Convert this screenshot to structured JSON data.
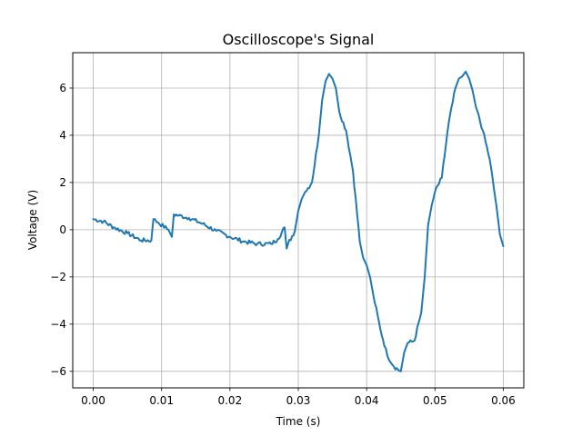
{
  "chart_data": {
    "type": "line",
    "title": "Oscilloscope's Signal",
    "xlabel": "Time (s)",
    "ylabel": "Voltage (V)",
    "xlim": [
      -0.003,
      0.063
    ],
    "ylim": [
      -6.7,
      7.5
    ],
    "x_ticks": [
      0.0,
      0.01,
      0.02,
      0.03,
      0.04,
      0.05,
      0.06
    ],
    "x_tick_labels": [
      "0.00",
      "0.01",
      "0.02",
      "0.03",
      "0.04",
      "0.05",
      "0.06"
    ],
    "y_ticks": [
      -6,
      -4,
      -2,
      0,
      2,
      4,
      6
    ],
    "y_tick_labels": [
      "−6",
      "−4",
      "−2",
      "0",
      "2",
      "4",
      "6"
    ],
    "grid": true,
    "series": [
      {
        "color": "#1f77b4",
        "x": [
          0.0,
          0.0015,
          0.003,
          0.005,
          0.007,
          0.0085,
          0.0088,
          0.0095,
          0.011,
          0.0115,
          0.0118,
          0.0125,
          0.014,
          0.016,
          0.018,
          0.02,
          0.022,
          0.024,
          0.026,
          0.027,
          0.028,
          0.0283,
          0.0285,
          0.0295,
          0.03,
          0.0305,
          0.031,
          0.032,
          0.033,
          0.0335,
          0.034,
          0.0345,
          0.035,
          0.0355,
          0.036,
          0.037,
          0.038,
          0.039,
          0.0395,
          0.04,
          0.0405,
          0.041,
          0.042,
          0.043,
          0.044,
          0.045,
          0.0455,
          0.046,
          0.047,
          0.048,
          0.0485,
          0.049,
          0.0495,
          0.05,
          0.051,
          0.052,
          0.053,
          0.0535,
          0.054,
          0.0545,
          0.055,
          0.0555,
          0.056,
          0.057,
          0.058,
          0.059,
          0.0595,
          0.06
        ],
        "y": [
          0.45,
          0.35,
          0.1,
          -0.15,
          -0.45,
          -0.45,
          0.45,
          0.3,
          0.0,
          -0.3,
          0.65,
          0.6,
          0.5,
          0.25,
          -0.05,
          -0.3,
          -0.5,
          -0.6,
          -0.6,
          -0.4,
          0.1,
          -0.8,
          -0.6,
          -0.05,
          0.8,
          1.3,
          1.6,
          2.0,
          4.0,
          5.5,
          6.3,
          6.6,
          6.4,
          6.0,
          5.0,
          4.2,
          2.5,
          -0.5,
          -1.2,
          -1.5,
          -2.0,
          -2.8,
          -4.2,
          -5.3,
          -5.8,
          -6.0,
          -5.2,
          -4.8,
          -4.7,
          -3.5,
          -2.0,
          0.2,
          1.0,
          1.6,
          2.2,
          4.5,
          6.0,
          6.4,
          6.5,
          6.7,
          6.4,
          5.9,
          5.2,
          4.2,
          3.0,
          1.0,
          -0.2,
          -0.7
        ]
      }
    ]
  }
}
